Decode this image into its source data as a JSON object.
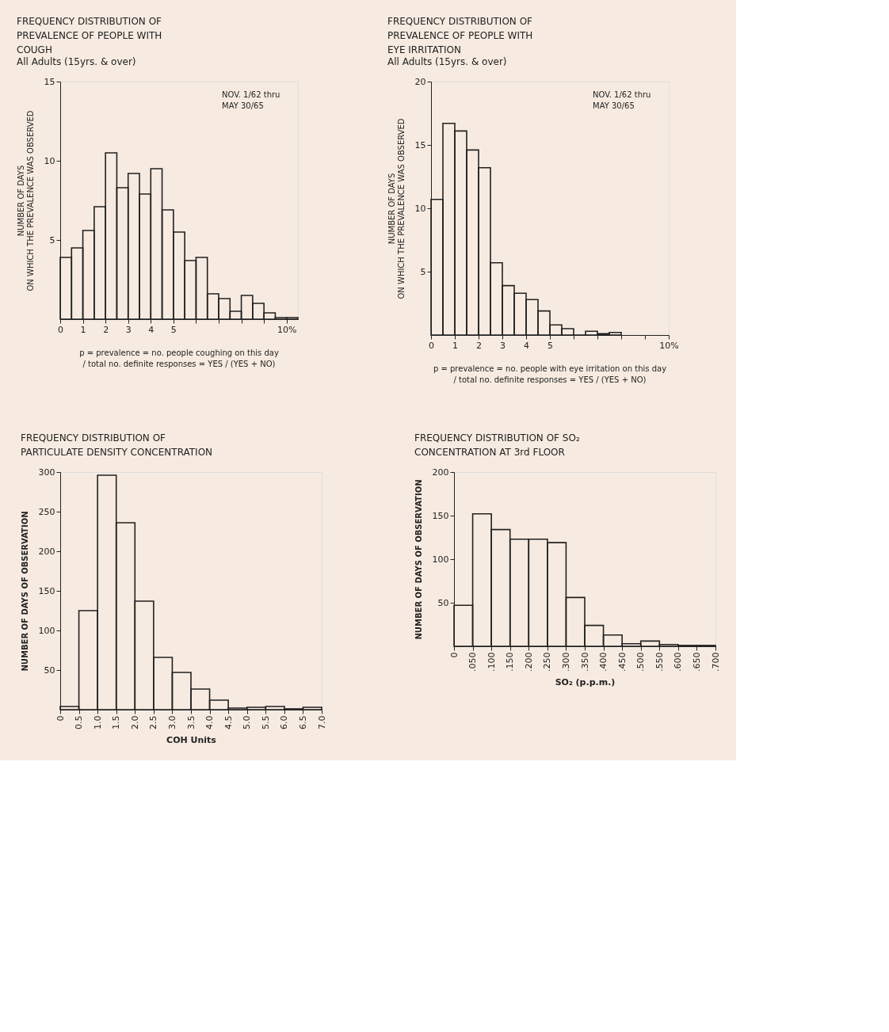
{
  "chart_data": [
    {
      "type": "histogram",
      "title": "FREQUENCY DISTRIBUTION OF\nPREVALENCE OF PEOPLE WITH\nCOUGH",
      "subtitle": "All Adults (15yrs. & over)",
      "ylabel": "NUMBER OF DAYS\nON WHICH THE PREVALENCE WAS OBSERVED",
      "color": "#222222",
      "annotations": [
        "NOV. 1/62 thru\nMAY 30/65",
        "p = prevalence = no. people coughing on this day\n/ total no. definite responses = YES / (YES + NO)"
      ],
      "bins": [
        0,
        0.5,
        1,
        1.5,
        2,
        2.5,
        3,
        3.5,
        4,
        4.5,
        5,
        5.5,
        6,
        6.5,
        7,
        7.5,
        8,
        8.5,
        9,
        9.5,
        10,
        10.5
      ],
      "values": [
        3.9,
        4.5,
        5.6,
        7.1,
        10.5,
        8.3,
        9.2,
        7.9,
        9.5,
        6.9,
        5.5,
        3.7,
        3.9,
        1.6,
        1.3,
        0.5,
        1.5,
        1.0,
        0.4,
        0.1,
        0.1
      ],
      "xlim": [
        0,
        10.5
      ],
      "ylim": [
        0,
        15
      ],
      "xticks": [
        0,
        1,
        2,
        3,
        4,
        5,
        {
          "value": 6,
          "label": null
        },
        {
          "value": 7,
          "label": null
        },
        {
          "value": 8,
          "label": null
        },
        {
          "value": 9,
          "label": null
        },
        {
          "value": 10,
          "label": "10%"
        }
      ],
      "yticks": [
        5,
        10,
        15
      ]
    },
    {
      "type": "histogram",
      "title": "FREQUENCY DISTRIBUTION OF\nPREVALENCE OF PEOPLE WITH\nEYE IRRITATION",
      "subtitle": "All Adults (15yrs. & over)",
      "ylabel": "NUMBER OF DAYS\nON WHICH THE PREVALENCE WAS OBSERVED",
      "color": "#222222",
      "annotations": [
        "NOV. 1/62 thru\nMAY 30/65",
        "p = prevalence = no. people with eye irritation on this day\n/ total no. definite responses = YES / (YES + NO)"
      ],
      "bins": [
        0,
        0.5,
        1,
        1.5,
        2,
        2.5,
        3,
        3.5,
        4,
        4.5,
        5,
        5.5,
        6,
        6.5,
        7,
        7.5,
        8
      ],
      "values": [
        10.7,
        16.7,
        16.1,
        14.6,
        13.2,
        5.7,
        3.9,
        3.3,
        2.8,
        1.9,
        0.8,
        0.5,
        0,
        0.3,
        0.1,
        0.2
      ],
      "xlim": [
        0,
        10
      ],
      "ylim": [
        0,
        20
      ],
      "xticks": [
        0,
        1,
        2,
        3,
        4,
        5,
        {
          "value": 6,
          "label": null
        },
        {
          "value": 7,
          "label": null
        },
        {
          "value": 8,
          "label": null
        },
        {
          "value": 9,
          "label": null
        },
        {
          "value": 10,
          "label": "10%"
        }
      ],
      "yticks": [
        5,
        10,
        15,
        20
      ]
    },
    {
      "type": "histogram",
      "title": "FREQUENCY DISTRIBUTION OF\nPARTICULATE DENSITY CONCENTRATION",
      "xlabel": "COH Units",
      "ylabel": "NUMBER OF DAYS OF OBSERVATION",
      "color": "#222222",
      "bins": [
        0,
        0.5,
        1,
        1.5,
        2,
        2.5,
        3,
        3.5,
        4,
        4.5,
        5,
        5.5,
        6,
        6.5,
        7
      ],
      "values": [
        4,
        125,
        296,
        236,
        137,
        66,
        47,
        26,
        12,
        2,
        3,
        4,
        1,
        3
      ],
      "xlim": [
        0,
        7
      ],
      "ylim": [
        0,
        300
      ],
      "xticks": [
        0,
        {
          "value": 0.5,
          "label": "0.5"
        },
        {
          "value": 1,
          "label": "1.0"
        },
        {
          "value": 1.5,
          "label": "1.5"
        },
        {
          "value": 2,
          "label": "2.0"
        },
        {
          "value": 2.5,
          "label": "2.5"
        },
        {
          "value": 3,
          "label": "3.0"
        },
        {
          "value": 3.5,
          "label": "3.5"
        },
        {
          "value": 4,
          "label": "4.0"
        },
        {
          "value": 4.5,
          "label": "4.5"
        },
        {
          "value": 5,
          "label": "5.0"
        },
        {
          "value": 5.5,
          "label": "5.5"
        },
        {
          "value": 6,
          "label": "6.0"
        },
        {
          "value": 6.5,
          "label": "6.5"
        },
        {
          "value": 7,
          "label": "7.0"
        }
      ],
      "yticks": [
        50,
        100,
        150,
        200,
        250,
        300
      ]
    },
    {
      "type": "histogram",
      "title": "FREQUENCY DISTRIBUTION OF SO₂\nCONCENTRATION AT 3rd FLOOR",
      "xlabel": "SO₂ (p.p.m.)",
      "ylabel": "NUMBER OF DAYS OF OBSERVATION",
      "color": "#222222",
      "bins": [
        0,
        0.05,
        0.1,
        0.15,
        0.2,
        0.25,
        0.3,
        0.35,
        0.4,
        0.45,
        0.5,
        0.55,
        0.6,
        0.65,
        0.7
      ],
      "values": [
        47,
        152,
        134,
        123,
        123,
        119,
        56,
        24,
        13,
        3,
        6,
        2,
        1,
        1
      ],
      "xlim": [
        0,
        0.7
      ],
      "ylim": [
        0,
        200
      ],
      "xticks": [
        0,
        {
          "value": 0.05,
          "label": ".050"
        },
        {
          "value": 0.1,
          "label": ".100"
        },
        {
          "value": 0.15,
          "label": ".150"
        },
        {
          "value": 0.2,
          "label": ".200"
        },
        {
          "value": 0.25,
          "label": ".250"
        },
        {
          "value": 0.3,
          "label": ".300"
        },
        {
          "value": 0.35,
          "label": ".350"
        },
        {
          "value": 0.4,
          "label": ".400"
        },
        {
          "value": 0.45,
          "label": ".450"
        },
        {
          "value": 0.5,
          "label": ".500"
        },
        {
          "value": 0.55,
          "label": ".550"
        },
        {
          "value": 0.6,
          "label": ".600"
        },
        {
          "value": 0.65,
          "label": ".650"
        },
        {
          "value": 0.7,
          "label": ".700"
        }
      ],
      "yticks": [
        50,
        100,
        150,
        200
      ]
    }
  ]
}
